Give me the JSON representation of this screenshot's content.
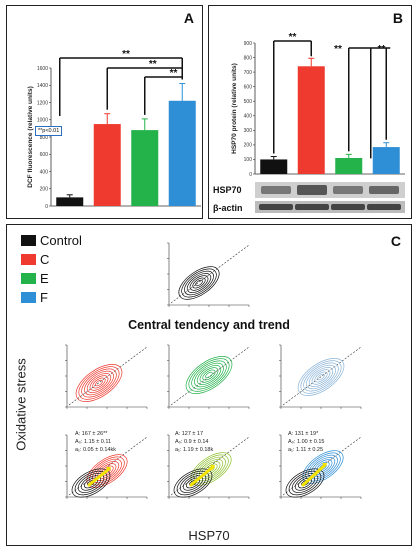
{
  "panels": {
    "A": {
      "letter": "A",
      "ylabel": "DCF fluorescence (relative units)",
      "pval": "**p<0.01"
    },
    "B": {
      "letter": "B",
      "ylabel": "HSP70  protein (relative units)",
      "blot_labels": [
        "HSP70",
        "β-actin"
      ]
    },
    "C": {
      "letter": "C",
      "center_title": "Central tendency and trend",
      "ylabel": "Oxidative stress",
      "xlabel": "HSP70",
      "legend": [
        {
          "label": "Control",
          "color": "#111111"
        },
        {
          "label": "C",
          "color": "#ef3a2f"
        },
        {
          "label": "E",
          "color": "#24b24b"
        },
        {
          "label": "F",
          "color": "#2f8fd6"
        }
      ],
      "stats": [
        [
          "A: 167 ± 26**",
          "A₀: 1.15 ± 0.11",
          "a₁: 0.05 ± 0.14kk"
        ],
        [
          "A: 127 ± 17",
          "A₀: 0.9 ± 0.14",
          "a₁: 1.19 ± 0.18k"
        ],
        [
          "A: 131 ± 19*",
          "A₀: 1.00 ± 0.15",
          "a₁: 1.11 ± 0.25"
        ]
      ]
    }
  },
  "chart_data": [
    {
      "type": "bar",
      "panel": "A",
      "categories": [
        "Control",
        "C",
        "E",
        "F"
      ],
      "values": [
        100,
        950,
        880,
        1220
      ],
      "errors": [
        30,
        120,
        130,
        200
      ],
      "colors": [
        "#111111",
        "#ef3a2f",
        "#24b24b",
        "#2f8fd6"
      ],
      "ylim": [
        0,
        1600
      ],
      "yticks": [
        0,
        200,
        400,
        600,
        800,
        1000,
        1200,
        1400,
        1600
      ],
      "ylabel": "DCF fluorescence (relative units)",
      "significance": [
        "**",
        "**",
        "**"
      ]
    },
    {
      "type": "bar",
      "panel": "B",
      "categories": [
        "Control",
        "C",
        "E",
        "F"
      ],
      "values": [
        100,
        740,
        110,
        185
      ],
      "errors": [
        20,
        55,
        25,
        30
      ],
      "colors": [
        "#111111",
        "#ef3a2f",
        "#24b24b",
        "#2f8fd6"
      ],
      "ylim": [
        0,
        900
      ],
      "yticks": [
        0,
        100,
        200,
        300,
        400,
        500,
        600,
        700,
        800,
        900
      ],
      "ylabel": "HSP70  protein (relative units)",
      "significance": [
        "**",
        "**",
        "**"
      ]
    }
  ]
}
